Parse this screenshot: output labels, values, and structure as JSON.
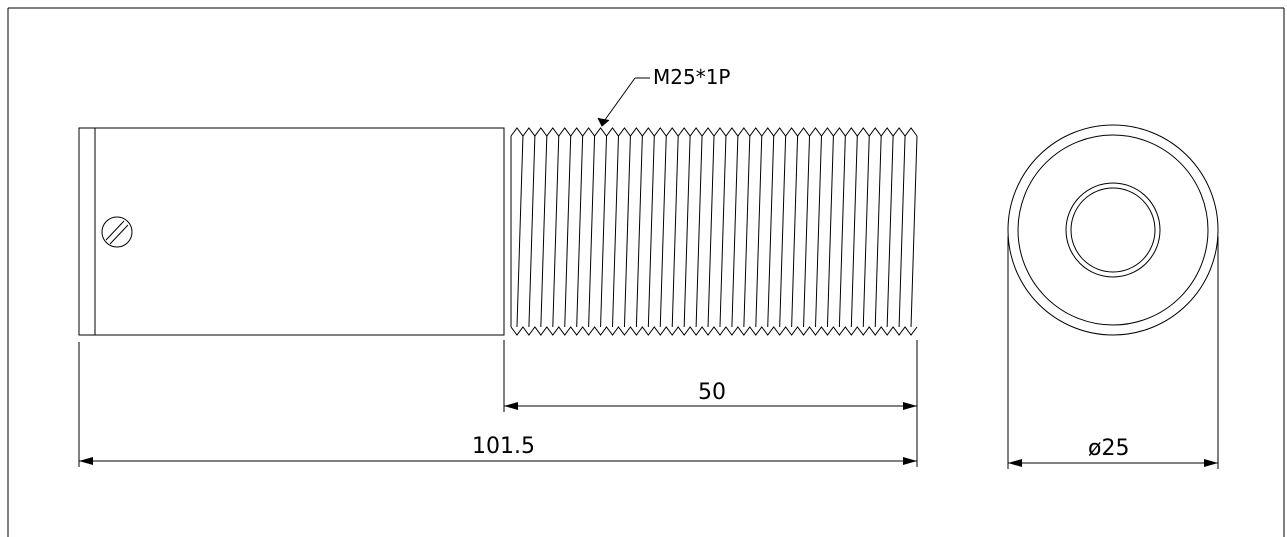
{
  "annotations": {
    "thread_spec": "M25*1P",
    "thread_length": "50",
    "overall_length": "101.5",
    "diameter": "ø25"
  },
  "thread": {
    "crest_count": 34
  },
  "colors": {
    "line": "#000000",
    "background": "#ffffff"
  }
}
